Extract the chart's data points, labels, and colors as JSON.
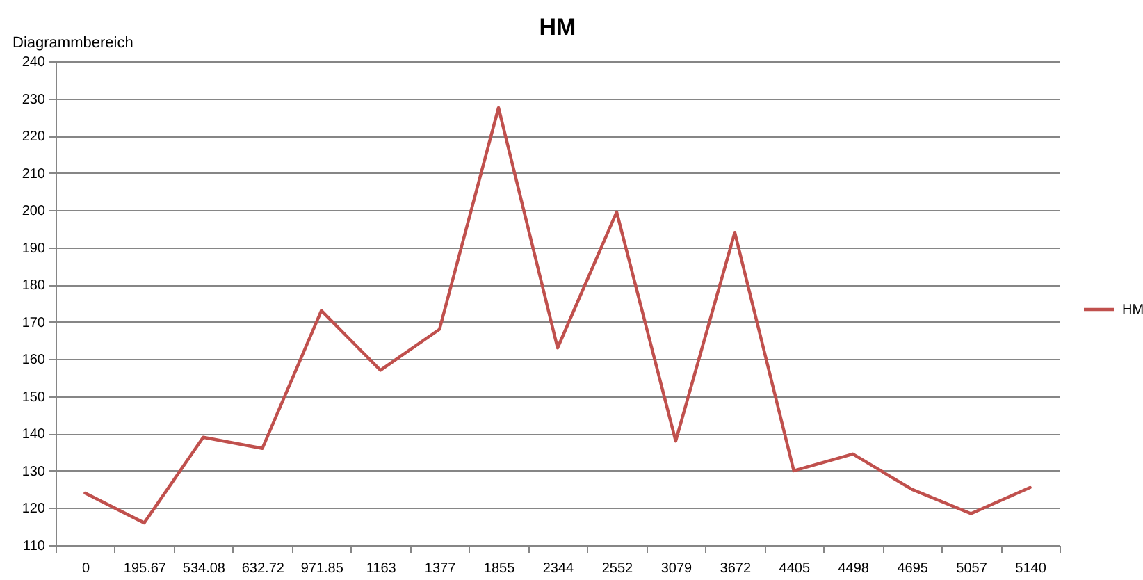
{
  "chart_data": {
    "type": "line",
    "title": "HM",
    "categories": [
      "0",
      "195.67",
      "534.08",
      "632.72",
      "971.85",
      "1163",
      "1377",
      "1855",
      "2344",
      "2552",
      "3079",
      "3672",
      "4405",
      "4498",
      "4695",
      "5057",
      "5140"
    ],
    "series": [
      {
        "name": "HM",
        "color": "#c0504d",
        "values": [
          124,
          116,
          139,
          136,
          173,
          157,
          168,
          227.5,
          163,
          199.5,
          138,
          194,
          130,
          134.5,
          125,
          118.5,
          125.5
        ]
      }
    ],
    "ylim": [
      110,
      240
    ],
    "yticks": [
      110,
      120,
      130,
      140,
      150,
      160,
      170,
      180,
      190,
      200,
      210,
      220,
      230,
      240
    ],
    "grid": "y",
    "legend": "right",
    "marker": "none",
    "line_style": "solid",
    "annotations": [
      "Diagrammbereich"
    ]
  }
}
